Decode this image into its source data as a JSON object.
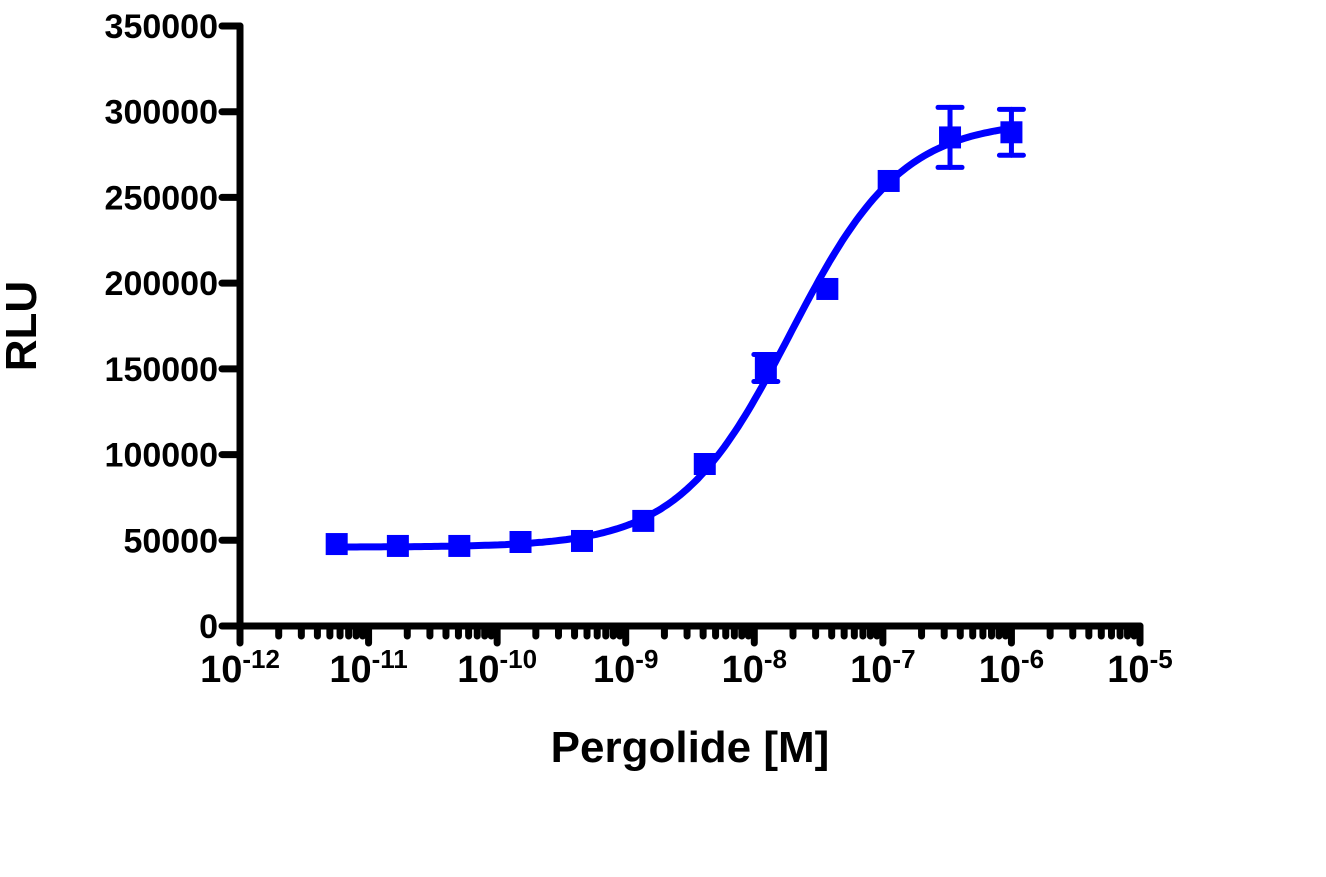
{
  "chart_data": {
    "type": "scatter",
    "title": "",
    "xlabel": "Pergolide [M]",
    "ylabel": "RLU",
    "x_scale": "log",
    "xlim": [
      1e-12,
      1e-05
    ],
    "ylim": [
      0,
      350000
    ],
    "x_tick_labels": [
      {
        "base": "10",
        "exp": "-12",
        "value": 1e-12
      },
      {
        "base": "10",
        "exp": "-11",
        "value": 1e-11
      },
      {
        "base": "10",
        "exp": "-10",
        "value": 1e-10
      },
      {
        "base": "10",
        "exp": "-9",
        "value": 1e-09
      },
      {
        "base": "10",
        "exp": "-8",
        "value": 1e-08
      },
      {
        "base": "10",
        "exp": "-7",
        "value": 1e-07
      },
      {
        "base": "10",
        "exp": "-6",
        "value": 1e-06
      },
      {
        "base": "10",
        "exp": "-5",
        "value": 1e-05
      }
    ],
    "y_ticks": [
      0,
      50000,
      100000,
      150000,
      200000,
      250000,
      300000,
      350000
    ],
    "y_tick_labels": [
      "0",
      "50000",
      "100000",
      "150000",
      "200000",
      "250000",
      "300000",
      "350000"
    ],
    "grid": false,
    "legend": "none",
    "color": "#0000ff",
    "marker": "square",
    "series": [
      {
        "x": [
          5.65e-12,
          1.69e-11,
          5.08e-11,
          1.52e-10,
          4.57e-10,
          1.37e-09,
          4.12e-09,
          1.23e-08,
          3.7e-08,
          1.11e-07,
          3.33e-07,
          1e-06
        ],
        "y": [
          47800,
          46700,
          46700,
          49000,
          49600,
          61300,
          94500,
          150500,
          196600,
          259600,
          285000,
          288000
        ],
        "error": [
          0,
          0,
          0,
          0,
          0,
          0,
          0,
          7900,
          0,
          0,
          17500,
          13400
        ]
      }
    ],
    "fit_curve": {
      "model": "sigmoidal dose-response",
      "bottom": 46000,
      "top": 295000,
      "logEC50": -7.72,
      "hill": 1.0
    }
  }
}
